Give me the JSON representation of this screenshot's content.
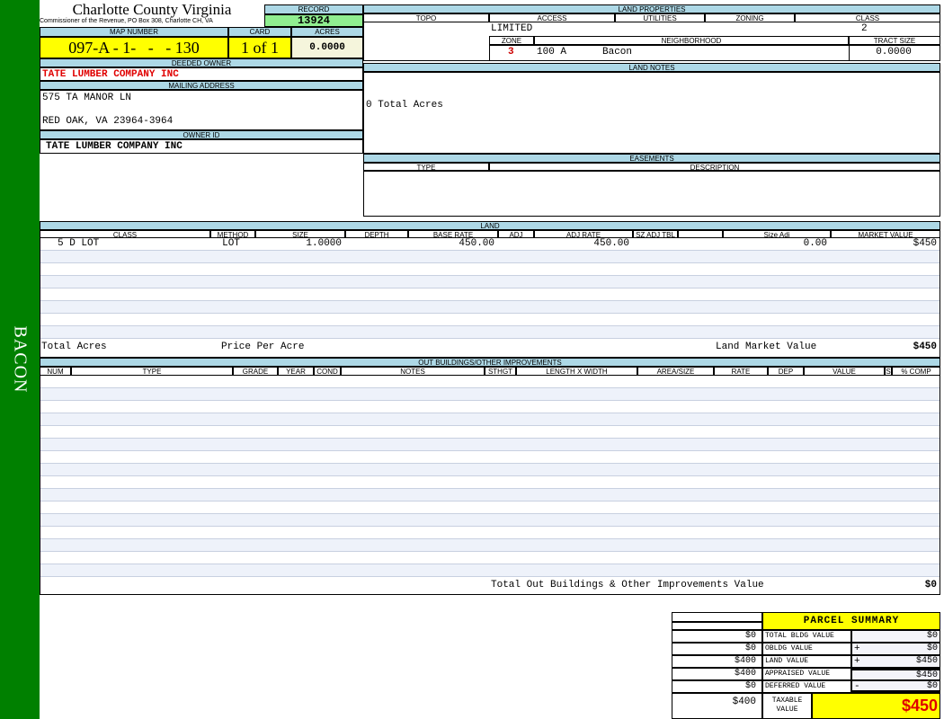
{
  "sidebar": {
    "label": "BACON"
  },
  "header": {
    "title": "Charlotte County Virginia",
    "subtitle": "Commissioner of the Revenue, PO Box 308, Charlotte CH, VA"
  },
  "record": {
    "label": "RECORD",
    "value": "13924"
  },
  "map_number": {
    "label": "MAP NUMBER",
    "value": "097-A - 1-   -   - 130"
  },
  "card": {
    "label": "CARD",
    "value": "1 of 1"
  },
  "acres": {
    "label": "ACRES",
    "value": "0.0000"
  },
  "deeded_owner": {
    "label": "DEEDED OWNER",
    "value": "TATE LUMBER COMPANY INC"
  },
  "mailing_address": {
    "label": "MAILING ADDRESS",
    "line1": "575 TA MANOR LN",
    "line2": "RED OAK, VA 23964-3964"
  },
  "owner_id": {
    "label": "OWNER ID",
    "value": "TATE LUMBER COMPANY INC"
  },
  "land_properties": {
    "label": "LAND PROPERTIES",
    "topo_label": "TOPO",
    "access_label": "ACCESS",
    "utilities_label": "UTILITIES",
    "zoning_label": "ZONING",
    "class_label": "CLASS",
    "access": "LIMITED",
    "class": "2",
    "zone_label": "ZONE",
    "neighborhood_label": "NEIGHBORHOOD",
    "tract_label": "TRACT SIZE",
    "zone": "3",
    "neighborhood_code": "100 A",
    "neighborhood": "Bacon",
    "tract_size": "0.0000"
  },
  "land_notes": {
    "label": "LAND NOTES",
    "text": "0 Total Acres"
  },
  "easements": {
    "label": "EASEMENTS",
    "type_label": "TYPE",
    "description_label": "DESCRIPTION"
  },
  "land": {
    "label": "LAND",
    "columns": [
      "CLASS",
      "METHOD",
      "SIZE",
      "DEPTH",
      "BASE RATE",
      "ADJ",
      "ADJ RATE",
      "SZ ADJ TBL",
      "",
      "Size Adj",
      "MARKET VALUE"
    ],
    "rows": [
      [
        "5 D LOT",
        "LOT",
        "1.0000",
        "",
        "450.00",
        "",
        "450.00",
        "",
        "",
        "0.00",
        "$450"
      ]
    ],
    "total_acres_label": "Total Acres",
    "price_per_acre_label": "Price Per Acre",
    "market_value_label": "Land Market Value",
    "market_value": "$450"
  },
  "outbuildings": {
    "label": "OUT BUILDINGS/OTHER IMPROVEMENTS",
    "columns": [
      "NUM",
      "TYPE",
      "GRADE",
      "YEAR",
      "COND",
      "NOTES",
      "STHGT",
      "LENGTH X WIDTH",
      "AREA/SIZE",
      "RATE",
      "DEP",
      "VALUE",
      "S",
      "% COMP"
    ],
    "total_label": "Total Out Buildings & Other Improvements Value",
    "total": "$0"
  },
  "parcel_summary": {
    "title": "PARCEL SUMMARY",
    "rows": [
      {
        "prior": "$0",
        "label": "TOTAL BLDG VALUE",
        "op": "",
        "value": "$0"
      },
      {
        "prior": "$0",
        "label": "OBLDG VALUE",
        "op": "+",
        "value": "$0"
      },
      {
        "prior": "$400",
        "label": "LAND VALUE",
        "op": "+",
        "value": "$450"
      },
      {
        "prior": "$400",
        "label": "APPRAISED VALUE",
        "op": "",
        "value": "$450"
      },
      {
        "prior": "$0",
        "label": "DEFERRED VALUE",
        "op": "-",
        "value": "$0"
      }
    ],
    "taxable_prior": "$400",
    "taxable_label": "TAXABLE VALUE",
    "taxable_value": "$450"
  },
  "colors": {
    "sidebar": "#008000",
    "header": "#add8e6",
    "highlight": "#ffff00",
    "record": "#90ee90",
    "owner": "#e00000"
  }
}
